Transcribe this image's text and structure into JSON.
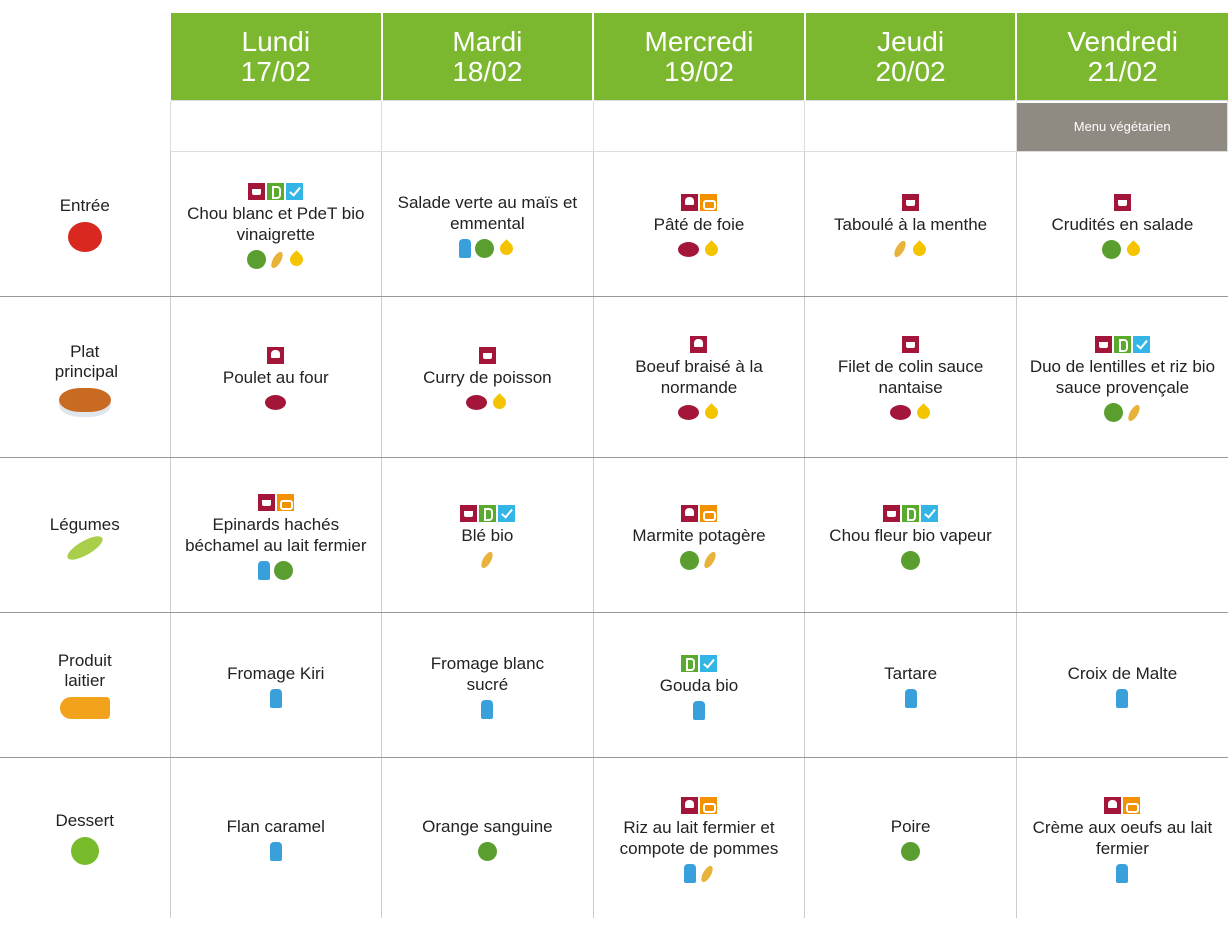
{
  "days": [
    {
      "name": "Lundi",
      "date": "17/02"
    },
    {
      "name": "Mardi",
      "date": "18/02"
    },
    {
      "name": "Mercredi",
      "date": "19/02"
    },
    {
      "name": "Jeudi",
      "date": "20/02"
    },
    {
      "name": "Vendredi",
      "date": "21/02"
    }
  ],
  "vegetarian_label": "Menu végétarien",
  "rows": [
    {
      "label": "Entrée",
      "dishes": [
        "Chou blanc et PdeT bio vinaigrette",
        "Salade verte au maïs et emmental",
        "Pâté de foie",
        "Taboulé à la menthe",
        "Crudités en salade"
      ]
    },
    {
      "label": "Plat principal",
      "dishes": [
        "Poulet au four",
        "Curry de poisson",
        "Boeuf braisé à la normande",
        "Filet de colin sauce nantaise",
        "Duo de lentilles et riz bio sauce provençale"
      ]
    },
    {
      "label": "Légumes",
      "dishes": [
        "Epinards hachés béchamel au lait fermier",
        "Blé bio",
        "Marmite potagère",
        "Chou fleur bio vapeur"
      ]
    },
    {
      "label": "Produit laitier",
      "dishes": [
        "Fromage Kiri",
        "Fromage blanc sucré",
        "Gouda bio",
        "Tartare",
        "Croix de Malte"
      ]
    },
    {
      "label": "Dessert",
      "dishes": [
        "Flan caramel",
        "Orange sanguine",
        "Riz au lait fermier et compote de pommes",
        "Poire",
        "Crème aux oeufs au lait fermier"
      ]
    }
  ]
}
